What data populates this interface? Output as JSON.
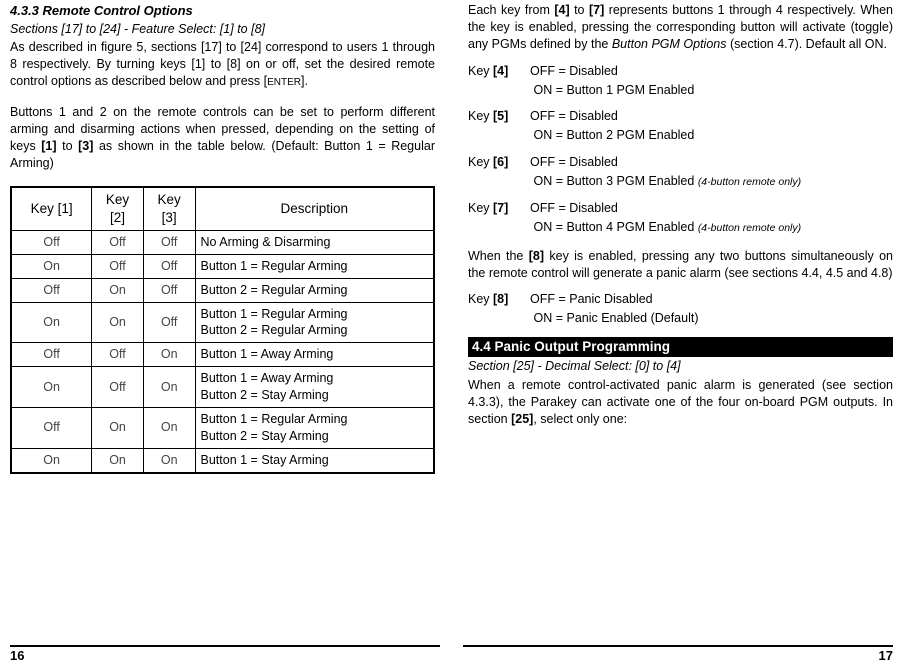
{
  "left": {
    "heading": "4.3.3 Remote Control Options",
    "subheading": "Sections [17] to [24] - Feature Select: [1] to [8]",
    "para1_a": "As described in figure 5, sections [17] to [24] correspond to users 1 through 8 respectively. By turning keys [1] to [8] on or off, set the desired remote control options as described below and press [",
    "para1_enter": "ENTER",
    "para1_b": "].",
    "para2_a": "Buttons 1 and 2 on the remote controls can be set to perform different arming and disarming actions when pressed, depending on the setting of keys ",
    "para2_b1": "[1]",
    "para2_b": " to ",
    "para2_b3": "[3]",
    "para2_c": " as shown in the table below. (Default: Button 1 = Regular Arming)",
    "table": {
      "headers": [
        "Key [1]",
        "Key [2]",
        "Key [3]",
        "Description"
      ],
      "rows": [
        [
          "Off",
          "Off",
          "Off",
          "No Arming & Disarming"
        ],
        [
          "On",
          "Off",
          "Off",
          "Button 1 = Regular Arming"
        ],
        [
          "Off",
          "On",
          "Off",
          "Button 2 = Regular Arming"
        ],
        [
          "On",
          "On",
          "Off",
          "Button 1 = Regular Arming\nButton 2 = Regular Arming"
        ],
        [
          "Off",
          "Off",
          "On",
          "Button 1 = Away Arming"
        ],
        [
          "On",
          "Off",
          "On",
          "Button 1 = Away Arming\nButton 2 = Stay Arming"
        ],
        [
          "Off",
          "On",
          "On",
          "Button 1 = Regular Arming\nButton 2 = Stay Arming"
        ],
        [
          "On",
          "On",
          "On",
          "Button 1 = Stay Arming"
        ]
      ]
    },
    "pagenum": "16"
  },
  "right": {
    "para1_a": "Each key from ",
    "para1_k4": "[4]",
    "para1_b": " to ",
    "para1_k7": "[7]",
    "para1_c": " represents buttons 1 through 4 respectively. When the key is enabled, pressing the corresponding button will activate (toggle) any PGMs defined by the ",
    "para1_italic": "Button PGM Options",
    "para1_d": " (section 4.7). Default all ON.",
    "keys": [
      {
        "label": "Key [4]",
        "off": "OFF = Disabled",
        "on": "ON = Button 1 PGM Enabled",
        "note": ""
      },
      {
        "label": "Key [5]",
        "off": "OFF = Disabled",
        "on": "ON = Button 2 PGM Enabled",
        "note": ""
      },
      {
        "label": "Key [6]",
        "off": "OFF = Disabled",
        "on": "ON = Button 3 PGM Enabled ",
        "note": "(4-button remote only)"
      },
      {
        "label": "Key [7]",
        "off": "OFF = Disabled",
        "on": "ON = Button 4 PGM Enabled ",
        "note": "(4-button remote only)"
      }
    ],
    "para2_a": "When the ",
    "para2_k8": "[8]",
    "para2_b": " key is enabled, pressing any two buttons simultaneously on the remote control will generate a panic alarm (see sections 4.4, 4.5 and 4.8)",
    "key8": {
      "label": "Key [8]",
      "off": "OFF = Panic Disabled",
      "on": "ON = Panic Enabled (Default)"
    },
    "section_title": "4.4 Panic Output Programming",
    "section_sub": "Section [25] - Decimal Select: [0] to [4]",
    "para3_a": "When a remote control-activated panic alarm is generated (see section 4.3.3), the Parakey can activate one of the four on-board PGM outputs. In section ",
    "para3_b": "[25]",
    "para3_c": ", select only one:",
    "pagenum": "17"
  }
}
